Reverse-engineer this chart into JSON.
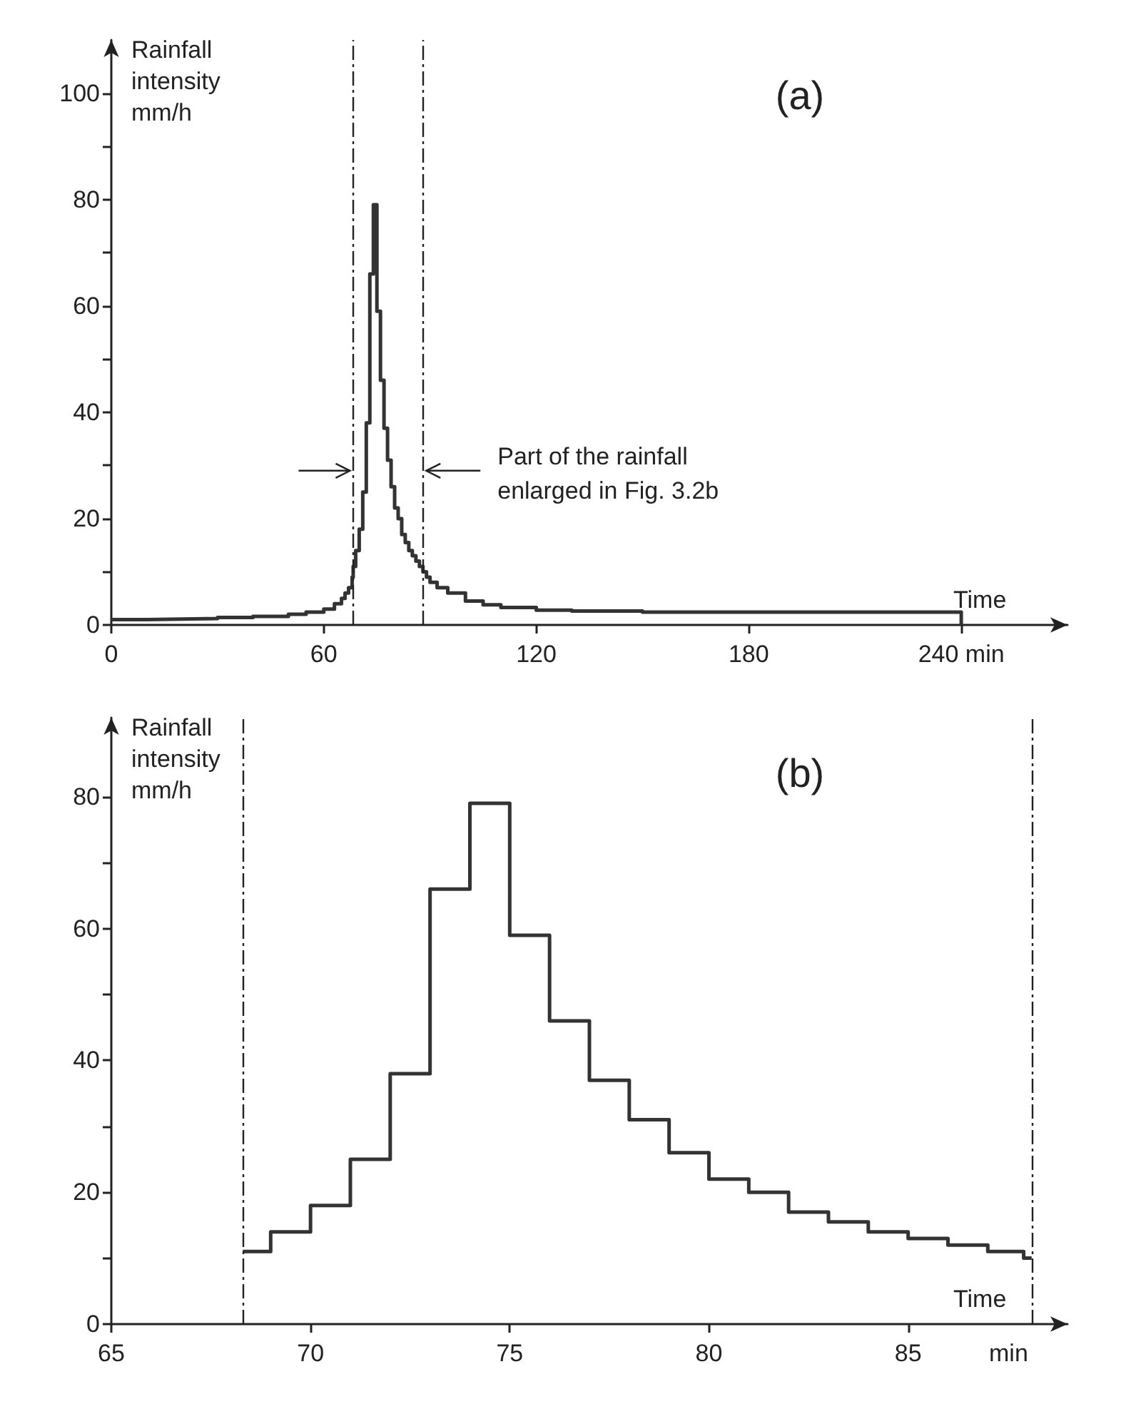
{
  "chart_data": [
    {
      "type": "step",
      "title": "(a)",
      "xlabel": "Time",
      "ylabel": "Rainfall\nintensity\nmm/h",
      "annotations": [
        {
          "text": "Part of the rainfall\nenlarged in Fig. 3.2b",
          "x": 88.1,
          "y": 29
        }
      ],
      "x": [
        0,
        10,
        20,
        30,
        40,
        50,
        55,
        60,
        63,
        65,
        66,
        67,
        68,
        68.3,
        69,
        70,
        71,
        72,
        73,
        74,
        75,
        76,
        77,
        78,
        79,
        80,
        81,
        82,
        83,
        84,
        85,
        86,
        87,
        88,
        89,
        90,
        92,
        95,
        100,
        105,
        110,
        120,
        130,
        150,
        180,
        210,
        240,
        240
      ],
      "values": [
        1,
        1.1,
        1.2,
        1.4,
        1.6,
        2,
        2.4,
        3,
        4,
        5,
        6,
        7,
        9,
        11,
        14,
        18,
        25,
        38,
        66,
        79,
        59,
        46,
        37,
        31,
        26,
        22,
        20,
        17,
        15.5,
        14,
        13,
        12,
        11,
        10,
        9,
        8,
        7,
        6,
        4.5,
        3.8,
        3.3,
        2.8,
        2.6,
        2.4,
        2.4,
        2.4,
        2.4,
        0
      ],
      "color": "#333333",
      "xlim": [
        0,
        270
      ],
      "ylim": [
        0,
        110
      ],
      "xticks": [
        0,
        60,
        120,
        180,
        {
          "value": 240,
          "label": "240 min"
        }
      ],
      "yticks": [
        0,
        {
          "value": 10,
          "label": null
        },
        20,
        {
          "value": 30,
          "label": null
        },
        40,
        {
          "value": 50,
          "label": null
        },
        60,
        {
          "value": 70,
          "label": null
        },
        80,
        {
          "value": 90,
          "label": null
        },
        100
      ],
      "ref_lines": [
        {
          "axis": "x",
          "value": 68.2,
          "line_style": "dashed"
        },
        {
          "axis": "x",
          "value": 88.1,
          "line_style": "dashed"
        }
      ],
      "grid": false,
      "marker": "none",
      "line_style": "solid"
    },
    {
      "type": "step",
      "title": "(b)",
      "xlabel": "Time",
      "ylabel": "Rainfall\nintensity\nmm/h",
      "annotations": [
        "min"
      ],
      "x": [
        68.3,
        69,
        70,
        71,
        72,
        73,
        74,
        75,
        76,
        77,
        78,
        79,
        80,
        81,
        82,
        83,
        84,
        85,
        86,
        87,
        87.9,
        88.1
      ],
      "values": [
        11,
        14,
        18,
        25,
        38,
        66,
        79,
        59,
        46,
        37,
        31,
        26,
        22,
        20,
        17,
        15.5,
        14,
        13,
        12,
        11,
        10,
        10
      ],
      "color": "#333333",
      "xlim": [
        65,
        89
      ],
      "ylim": [
        0,
        92
      ],
      "xticks": [
        65,
        70,
        75,
        80,
        85
      ],
      "yticks": [
        0,
        {
          "value": 10,
          "label": null
        },
        20,
        {
          "value": 30,
          "label": null
        },
        40,
        {
          "value": 50,
          "label": null
        },
        60,
        {
          "value": 70,
          "label": null
        },
        80
      ],
      "ref_lines": [
        {
          "axis": "x",
          "value": 68.3,
          "line_style": "dashed"
        },
        {
          "axis": "x",
          "value": 88.1,
          "line_style": "dashed"
        }
      ],
      "grid": false,
      "marker": "none",
      "line_style": "solid"
    }
  ]
}
